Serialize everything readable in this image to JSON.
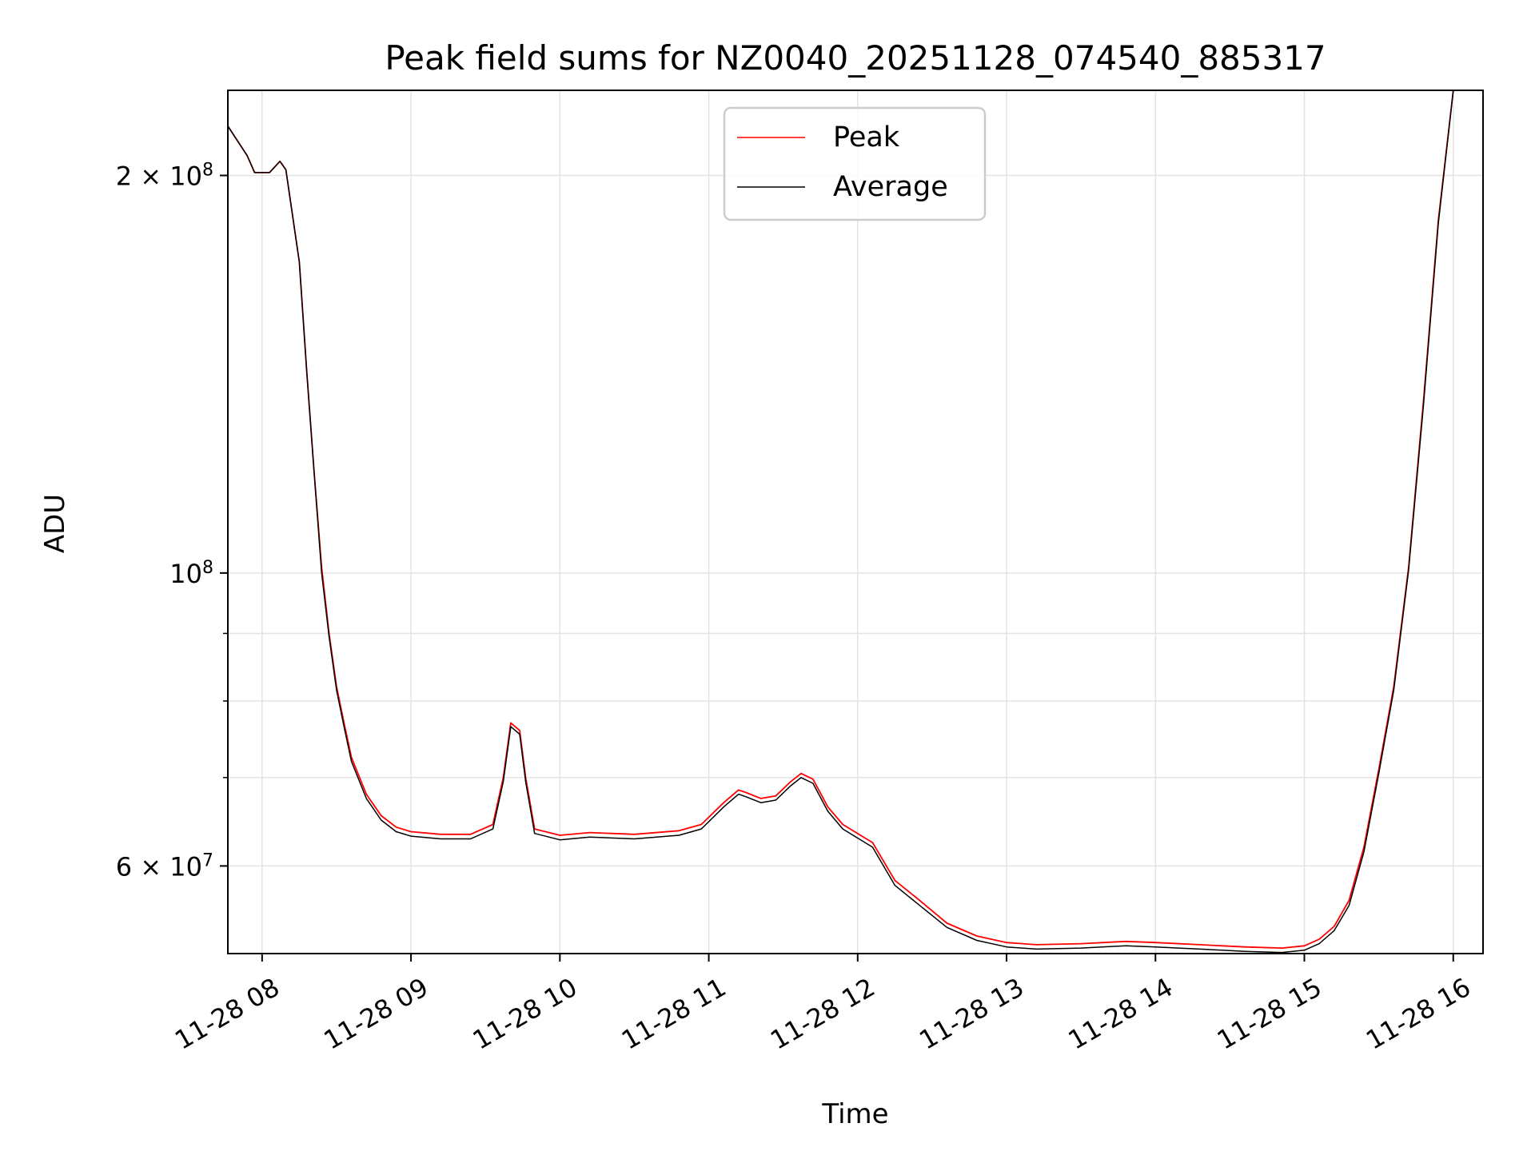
{
  "chart_data": {
    "type": "line",
    "title": "Peak field sums for NZ0040_20251128_074540_885317",
    "xlabel": "Time",
    "ylabel": "ADU",
    "yscale": "log",
    "grid": true,
    "legend_position": "upper-center",
    "xlim": [
      7.77,
      16.2
    ],
    "ylim": [
      51500000,
      232000000
    ],
    "x_ticks": [
      {
        "value": 8,
        "label": "11-28 08"
      },
      {
        "value": 9,
        "label": "11-28 09"
      },
      {
        "value": 10,
        "label": "11-28 10"
      },
      {
        "value": 11,
        "label": "11-28 11"
      },
      {
        "value": 12,
        "label": "11-28 12"
      },
      {
        "value": 13,
        "label": "11-28 13"
      },
      {
        "value": 14,
        "label": "11-28 14"
      },
      {
        "value": 15,
        "label": "11-28 15"
      },
      {
        "value": 16,
        "label": "11-28 16"
      }
    ],
    "y_major_ticks": [
      {
        "value": 200000000,
        "mantissa": "2",
        "times": " × ",
        "base": "10",
        "exp": "8"
      },
      {
        "value": 100000000,
        "mantissa": "",
        "times": "",
        "base": "10",
        "exp": "8"
      },
      {
        "value": 60000000,
        "mantissa": "6",
        "times": " × ",
        "base": "10",
        "exp": "7"
      }
    ],
    "y_minor_ticks": [
      70000000,
      80000000,
      90000000
    ],
    "x_unit": "hour of day (2025-11-28)",
    "series": [
      {
        "name": "Peak",
        "color": "#ff0000",
        "x": [
          7.77,
          7.9,
          7.95,
          8.05,
          8.12,
          8.16,
          8.25,
          8.3,
          8.35,
          8.4,
          8.45,
          8.5,
          8.55,
          8.6,
          8.7,
          8.8,
          8.9,
          9.0,
          9.2,
          9.4,
          9.55,
          9.62,
          9.67,
          9.7,
          9.73,
          9.77,
          9.83,
          10.0,
          10.2,
          10.5,
          10.8,
          10.95,
          11.1,
          11.2,
          11.25,
          11.35,
          11.45,
          11.55,
          11.62,
          11.7,
          11.8,
          11.9,
          12.1,
          12.25,
          12.4,
          12.6,
          12.8,
          13.0,
          13.2,
          13.5,
          13.8,
          14.0,
          14.3,
          14.6,
          14.85,
          15.0,
          15.1,
          15.2,
          15.3,
          15.4,
          15.5,
          15.6,
          15.7,
          15.8,
          15.9,
          16.0,
          16.2
        ],
        "y": [
          218000000,
          207000000,
          201000000,
          201000000,
          205000000,
          202000000,
          172000000,
          142000000,
          119000000,
          101000000,
          90000000,
          82000000,
          77000000,
          72500000,
          68000000,
          65500000,
          64200000,
          63700000,
          63400000,
          63400000,
          64500000,
          70000000,
          77000000,
          76500000,
          76000000,
          70000000,
          64000000,
          63300000,
          63600000,
          63400000,
          63800000,
          64500000,
          67000000,
          68500000,
          68200000,
          67500000,
          67800000,
          69500000,
          70500000,
          69800000,
          66500000,
          64500000,
          62500000,
          58500000,
          56700000,
          54300000,
          53100000,
          52500000,
          52300000,
          52400000,
          52600000,
          52500000,
          52300000,
          52100000,
          52000000,
          52200000,
          52800000,
          54000000,
          56500000,
          62000000,
          71000000,
          82000000,
          101000000,
          135000000,
          185000000,
          232000000,
          232000000
        ]
      },
      {
        "name": "Average",
        "color": "#000000",
        "x": [
          7.77,
          7.9,
          7.95,
          8.05,
          8.12,
          8.16,
          8.25,
          8.3,
          8.35,
          8.4,
          8.45,
          8.5,
          8.55,
          8.6,
          8.7,
          8.8,
          8.9,
          9.0,
          9.2,
          9.4,
          9.55,
          9.62,
          9.67,
          9.7,
          9.73,
          9.77,
          9.83,
          10.0,
          10.2,
          10.5,
          10.8,
          10.95,
          11.1,
          11.2,
          11.25,
          11.35,
          11.45,
          11.55,
          11.62,
          11.7,
          11.8,
          11.9,
          12.1,
          12.25,
          12.4,
          12.6,
          12.8,
          13.0,
          13.2,
          13.5,
          13.8,
          14.0,
          14.3,
          14.6,
          14.85,
          15.0,
          15.1,
          15.2,
          15.3,
          15.4,
          15.5,
          15.6,
          15.7,
          15.8,
          15.9,
          16.0,
          16.2
        ],
        "y": [
          218000000,
          207000000,
          201000000,
          201000000,
          205000000,
          202000000,
          172000000,
          142000000,
          119000000,
          100000000,
          89500000,
          81500000,
          76500000,
          72000000,
          67500000,
          65000000,
          63700000,
          63200000,
          62900000,
          62900000,
          64000000,
          69500000,
          76500000,
          76000000,
          75500000,
          69500000,
          63500000,
          62800000,
          63100000,
          62900000,
          63300000,
          64000000,
          66500000,
          68000000,
          67700000,
          67000000,
          67300000,
          69000000,
          70000000,
          69300000,
          66000000,
          64000000,
          62000000,
          58000000,
          56200000,
          53900000,
          52700000,
          52100000,
          51900000,
          52000000,
          52200000,
          52100000,
          51900000,
          51700000,
          51600000,
          51800000,
          52400000,
          53600000,
          56000000,
          61500000,
          70500000,
          81500000,
          100500000,
          134000000,
          184000000,
          232000000,
          232000000
        ]
      }
    ]
  }
}
